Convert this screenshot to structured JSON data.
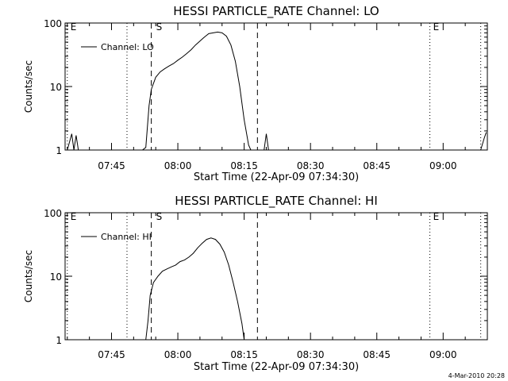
{
  "chart_data": [
    {
      "type": "line",
      "title": "HESSI PARTICLE_RATE Channel: LO",
      "xlabel": "Start Time (22-Apr-09 07:34:30)",
      "ylabel": "Counts/sec",
      "yscale": "log",
      "xlim": [
        "07:34:30",
        "09:10:00"
      ],
      "ylim": [
        1,
        100
      ],
      "x_ticks": [
        "07:45",
        "08:00",
        "08:15",
        "08:30",
        "08:45",
        "09:00"
      ],
      "y_ticks": [
        "1",
        "10",
        "100"
      ],
      "grid": false,
      "legend": {
        "placement": "top-left",
        "entries": [
          "Channel: LO"
        ]
      },
      "series": [
        {
          "name": "Channel: LO",
          "x": [
            "07:35:00",
            "07:36:00",
            "07:36:30",
            "07:37:00",
            "07:37:30",
            "07:38:00",
            "07:38:30",
            "07:52:00",
            "07:52:45",
            "07:53:30",
            "07:54:00",
            "07:55:00",
            "07:56:00",
            "07:57:00",
            "07:58:00",
            "07:59:00",
            "08:00:00",
            "08:01:00",
            "08:02:00",
            "08:03:00",
            "08:04:00",
            "08:05:00",
            "08:06:00",
            "08:07:00",
            "08:08:00",
            "08:09:00",
            "08:10:00",
            "08:11:00",
            "08:12:00",
            "08:13:00",
            "08:14:00",
            "08:15:00",
            "08:16:00",
            "08:16:30",
            "08:19:30",
            "08:20:00",
            "08:20:30",
            "09:08:30",
            "09:09:15",
            "09:09:45"
          ],
          "y": [
            1,
            1.8,
            1,
            1.7,
            1,
            1,
            1,
            1,
            1.1,
            5,
            9,
            14,
            17,
            19,
            21,
            23,
            26,
            29,
            33,
            38,
            45,
            52,
            60,
            68,
            70,
            72,
            70,
            62,
            45,
            25,
            10,
            3,
            1.2,
            1,
            1,
            1.8,
            1,
            1,
            1.5,
            1.9
          ]
        }
      ],
      "vertical_markers": [
        {
          "label": "E",
          "time": "07:35:00",
          "style": "dotted"
        },
        {
          "label": "",
          "time": "07:48:30",
          "style": "dotted"
        },
        {
          "label": "S",
          "time": "07:54:00",
          "style": "dashed"
        },
        {
          "label": "",
          "time": "08:18:00",
          "style": "dashed"
        },
        {
          "label": "E",
          "time": "08:57:00",
          "style": "dotted"
        },
        {
          "label": "",
          "time": "09:08:30",
          "style": "dotted"
        }
      ]
    },
    {
      "type": "line",
      "title": "HESSI PARTICLE_RATE Channel: HI",
      "xlabel": "Start Time (22-Apr-09 07:34:30)",
      "ylabel": "Counts/sec",
      "yscale": "log",
      "xlim": [
        "07:34:30",
        "09:10:00"
      ],
      "ylim": [
        1,
        100
      ],
      "x_ticks": [
        "07:45",
        "08:00",
        "08:15",
        "08:30",
        "08:45",
        "09:00"
      ],
      "y_ticks": [
        "1",
        "10",
        "100"
      ],
      "grid": false,
      "legend": {
        "placement": "top-left",
        "entries": [
          "Channel: HI"
        ]
      },
      "series": [
        {
          "name": "Channel: HI",
          "x": [
            "07:52:45",
            "07:53:15",
            "07:53:45",
            "07:54:30",
            "07:55:30",
            "07:56:30",
            "07:57:30",
            "07:58:30",
            "07:59:30",
            "08:00:30",
            "08:01:30",
            "08:02:30",
            "08:03:30",
            "08:04:30",
            "08:05:30",
            "08:06:30",
            "08:07:30",
            "08:08:30",
            "08:09:30",
            "08:10:30",
            "08:11:30",
            "08:12:30",
            "08:13:30",
            "08:14:30",
            "08:15:00"
          ],
          "y": [
            1,
            2,
            5,
            8,
            10,
            12,
            13,
            14,
            15,
            17,
            18,
            20,
            23,
            28,
            33,
            38,
            40,
            38,
            32,
            24,
            15,
            8,
            4,
            1.8,
            1
          ]
        }
      ],
      "vertical_markers": [
        {
          "label": "E",
          "time": "07:35:00",
          "style": "dotted"
        },
        {
          "label": "",
          "time": "07:48:30",
          "style": "dotted"
        },
        {
          "label": "S",
          "time": "07:54:00",
          "style": "dashed"
        },
        {
          "label": "",
          "time": "08:18:00",
          "style": "dashed"
        },
        {
          "label": "E",
          "time": "08:57:00",
          "style": "dotted"
        },
        {
          "label": "",
          "time": "09:08:30",
          "style": "dotted"
        }
      ]
    }
  ],
  "footer": {
    "timestamp": "4-Mar-2010 20:28"
  }
}
